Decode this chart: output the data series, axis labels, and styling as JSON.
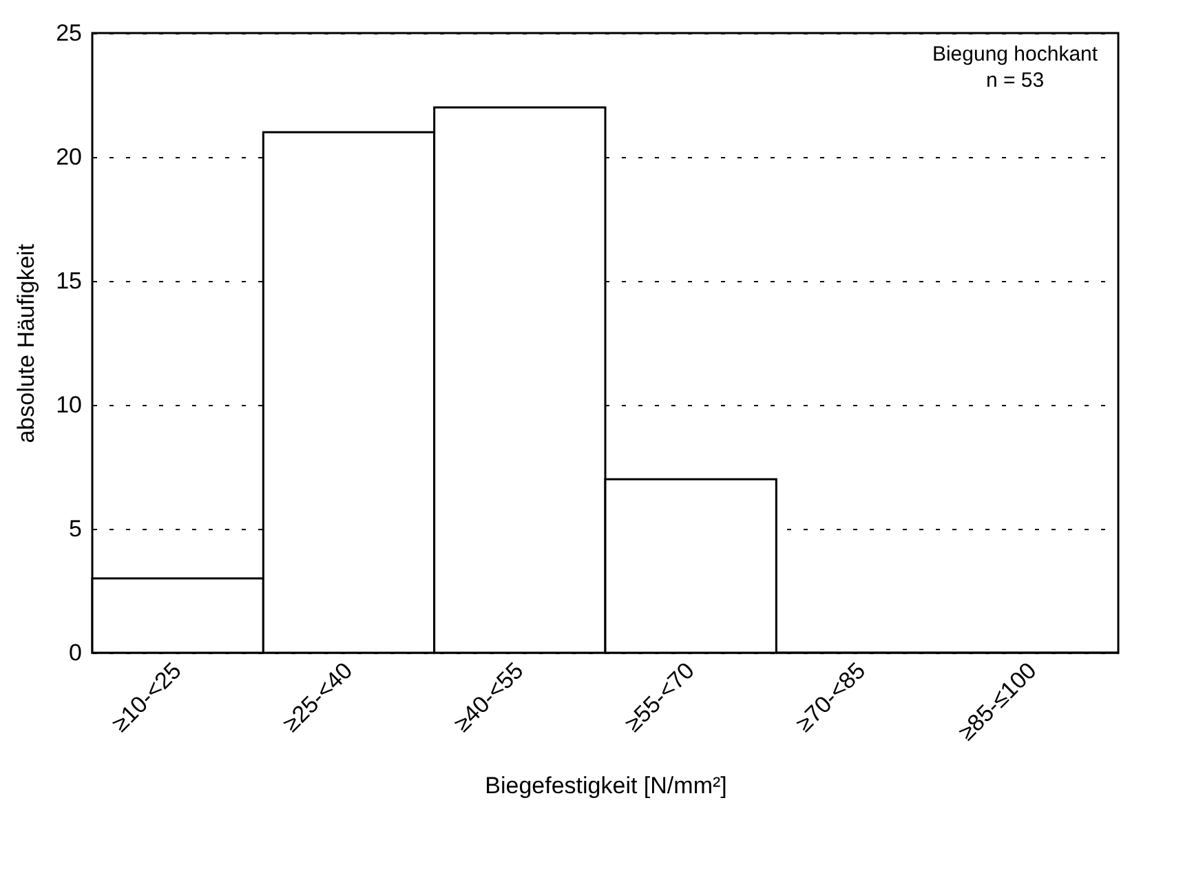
{
  "chart_data": {
    "type": "bar",
    "xlabel": "Biegefestigkeit   [N/mm²]",
    "ylabel": "absolute Häufigkeit",
    "categories": [
      "≥10-<25",
      "≥25-<40",
      "≥40-<55",
      "≥55-<70",
      "≥70-<85",
      "≥85-≤100"
    ],
    "values": [
      3,
      21,
      22,
      7,
      0,
      0
    ],
    "color": "#ffffff",
    "ylim": [
      0,
      25
    ],
    "yticks": [
      0,
      5,
      10,
      15,
      20,
      25
    ],
    "grid": "y",
    "annotations": [
      "Biegung hochkant",
      "n = 53"
    ]
  }
}
